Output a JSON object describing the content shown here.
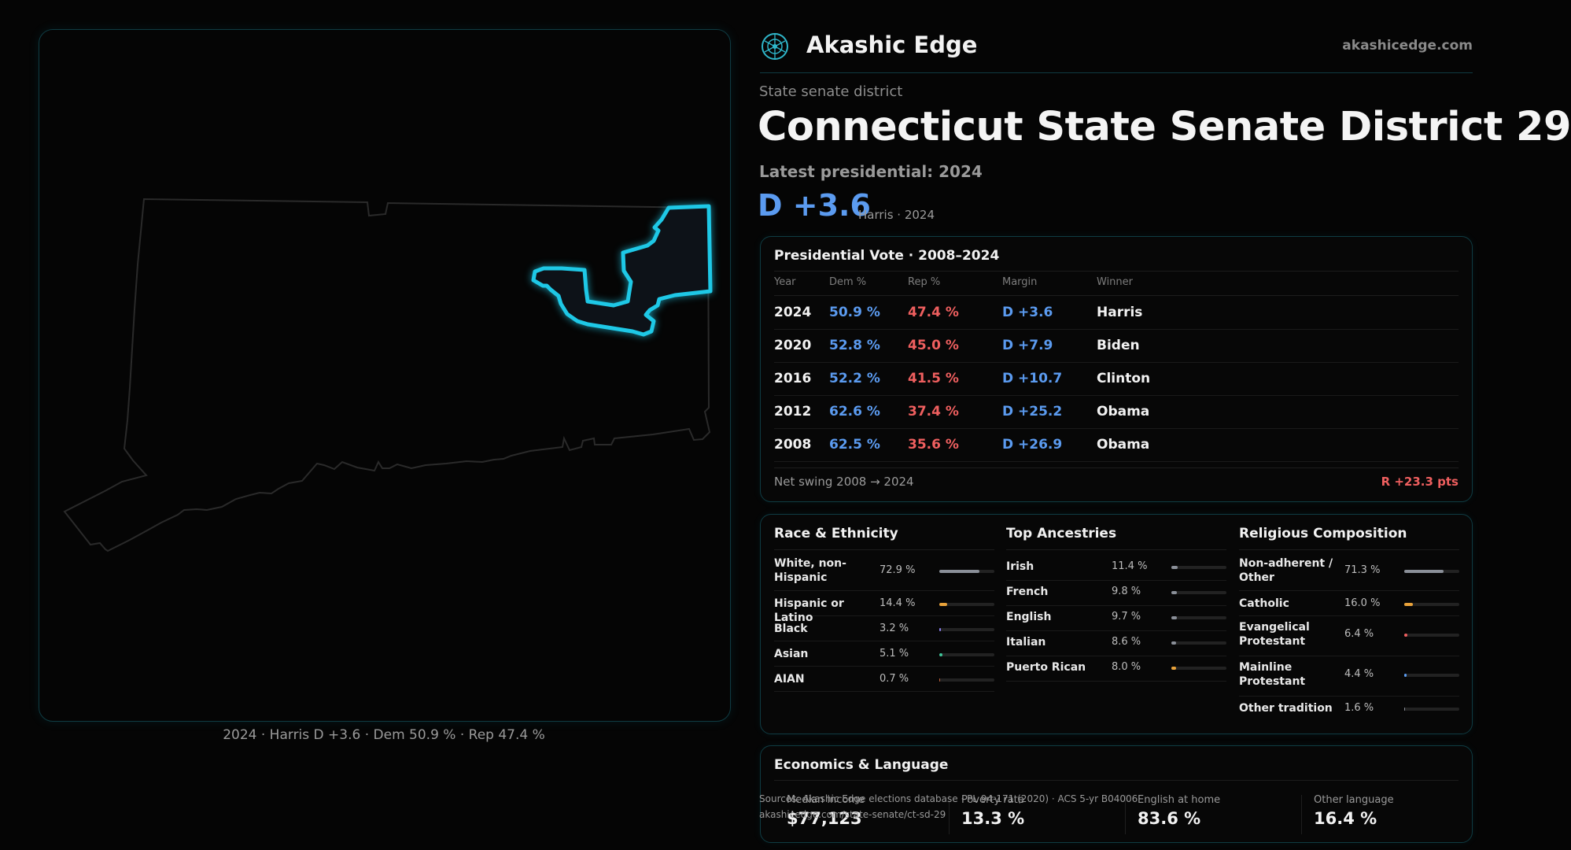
{
  "brand": {
    "name": "Akashic Edge",
    "url": "akashicedge.com"
  },
  "header": {
    "kicker": "State senate district",
    "title": "Connecticut State Senate District 29",
    "latest": "Latest presidential: 2024",
    "margin": "D +3.6",
    "margin_sub": "Harris · 2024"
  },
  "map": {
    "caption": "2024 · Harris D +3.6 · Dem 50.9 % · Rep 47.4 %",
    "highlight_color": "#1ec8e6",
    "state_outline_color": "#2a2a2a"
  },
  "presidential": {
    "title": "Presidential Vote · 2008–2024",
    "columns": [
      "Year",
      "Dem %",
      "Rep %",
      "Margin",
      "Winner"
    ],
    "rows": [
      {
        "year": "2024",
        "dem": "50.9 %",
        "rep": "47.4 %",
        "margin": "D +3.6",
        "winner": "Harris"
      },
      {
        "year": "2020",
        "dem": "52.8 %",
        "rep": "45.0 %",
        "margin": "D +7.9",
        "winner": "Biden"
      },
      {
        "year": "2016",
        "dem": "52.2 %",
        "rep": "41.5 %",
        "margin": "D +10.7",
        "winner": "Clinton"
      },
      {
        "year": "2012",
        "dem": "62.6 %",
        "rep": "37.4 %",
        "margin": "D +25.2",
        "winner": "Obama"
      },
      {
        "year": "2008",
        "dem": "62.5 %",
        "rep": "35.6 %",
        "margin": "D +26.9",
        "winner": "Obama"
      }
    ],
    "net_swing_label": "Net swing 2008 → 2024",
    "net_swing_value": "R +23.3 pts",
    "colors": {
      "dem": "#5b9bf0",
      "rep": "#ef5f5f"
    }
  },
  "race": {
    "title": "Race & Ethnicity",
    "items": [
      {
        "label": "White, non-Hispanic",
        "pct": "72.9 %",
        "value": 72.9,
        "color": "#8a8f98"
      },
      {
        "label": "Hispanic or Latino",
        "pct": "14.4 %",
        "value": 14.4,
        "color": "#e8a23a"
      },
      {
        "label": "Black",
        "pct": "3.2 %",
        "value": 3.2,
        "color": "#8a7ff0"
      },
      {
        "label": "Asian",
        "pct": "5.1 %",
        "value": 5.1,
        "color": "#3fc79a"
      },
      {
        "label": "AIAN",
        "pct": "0.7 %",
        "value": 0.7,
        "color": "#c0603a"
      }
    ]
  },
  "ancestry": {
    "title": "Top Ancestries",
    "items": [
      {
        "label": "Irish",
        "pct": "11.4 %",
        "value": 11.4,
        "color": "#8a8f98"
      },
      {
        "label": "French",
        "pct": "9.8 %",
        "value": 9.8,
        "color": "#8a8f98"
      },
      {
        "label": "English",
        "pct": "9.7 %",
        "value": 9.7,
        "color": "#8a8f98"
      },
      {
        "label": "Italian",
        "pct": "8.6 %",
        "value": 8.6,
        "color": "#8a8f98"
      },
      {
        "label": "Puerto Rican",
        "pct": "8.0 %",
        "value": 8.0,
        "color": "#e8a23a"
      }
    ]
  },
  "religion": {
    "title": "Religious Composition",
    "items": [
      {
        "label": "Non-adherent / Other",
        "pct": "71.3 %",
        "value": 71.3,
        "color": "#8a8f98"
      },
      {
        "label": "Catholic",
        "pct": "16.0 %",
        "value": 16.0,
        "color": "#e8a23a"
      },
      {
        "label": "Evangelical Protestant",
        "pct": "6.4 %",
        "value": 6.4,
        "color": "#ef5f5f"
      },
      {
        "label": "Mainline Protestant",
        "pct": "4.4 %",
        "value": 4.4,
        "color": "#5b9bf0"
      },
      {
        "label": "Other tradition",
        "pct": "1.6 %",
        "value": 1.6,
        "color": "#8a8f98"
      }
    ]
  },
  "economics": {
    "title": "Economics & Language",
    "items": [
      {
        "label": "Median income",
        "value": "$77,123"
      },
      {
        "label": "Poverty rate",
        "value": "13.3 %"
      },
      {
        "label": "English at home",
        "value": "83.6 %"
      },
      {
        "label": "Other language",
        "value": "16.4 %"
      }
    ]
  },
  "sources": {
    "line1": "Sources: Akashic Edge elections database · PL 94-171 (2020) · ACS 5-yr B04006",
    "line2": "akashicedge.com/state-senate/ct-sd-29"
  }
}
